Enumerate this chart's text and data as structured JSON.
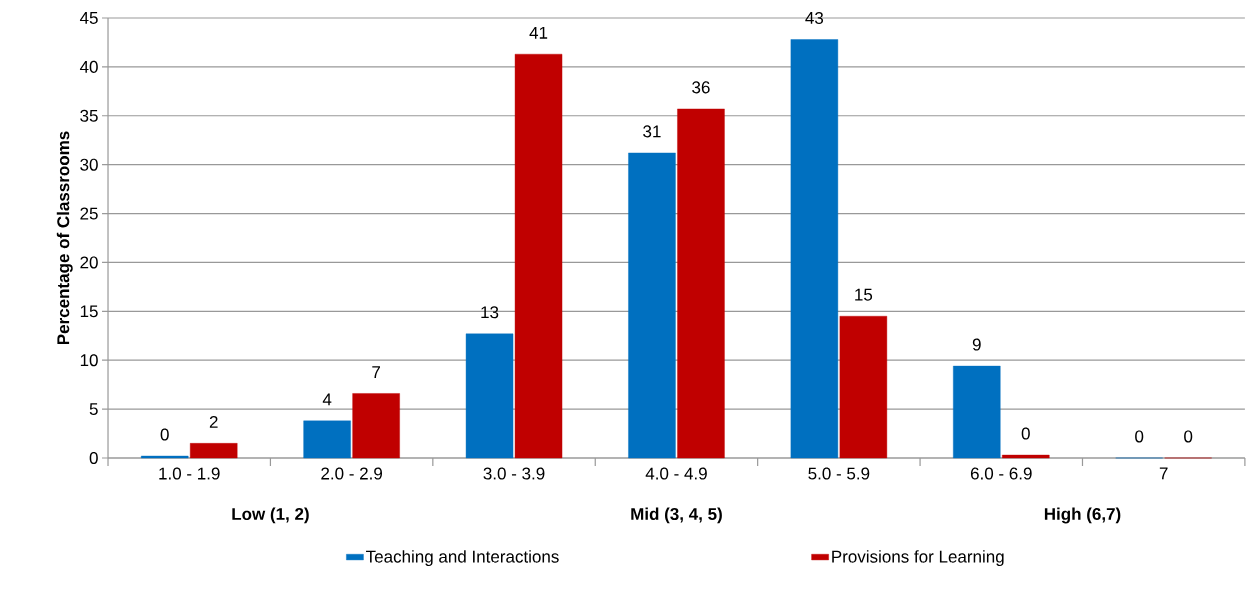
{
  "chart_data": {
    "type": "bar",
    "ylabel": "Percentage of Classrooms",
    "categories": [
      "1.0 - 1.9",
      "2.0 - 2.9",
      "3.0 - 3.9",
      "4.0 - 4.9",
      "5.0 - 5.9",
      "6.0 - 6.9",
      "7"
    ],
    "series": [
      {
        "name": "Teaching and Interactions",
        "color": "#0070c0",
        "values": [
          0.2,
          3.8,
          12.7,
          31.2,
          42.8,
          9.4,
          0
        ],
        "value_labels": [
          "0",
          "4",
          "13",
          "31",
          "43",
          "9",
          "0"
        ]
      },
      {
        "name": "Provisions for Learning",
        "color": "#c00000",
        "values": [
          1.5,
          6.6,
          41.3,
          35.7,
          14.5,
          0.3,
          0
        ],
        "value_labels": [
          "2",
          "7",
          "41",
          "36",
          "15",
          "0",
          "0"
        ]
      }
    ],
    "annotations": [
      "Low (1, 2)",
      "Mid (3, 4, 5)",
      "High (6,7)"
    ],
    "ylim": [
      0,
      45
    ],
    "yticks": [
      0,
      5,
      10,
      15,
      20,
      25,
      30,
      35,
      40,
      45
    ],
    "grid": "y",
    "legend": "bottom"
  }
}
